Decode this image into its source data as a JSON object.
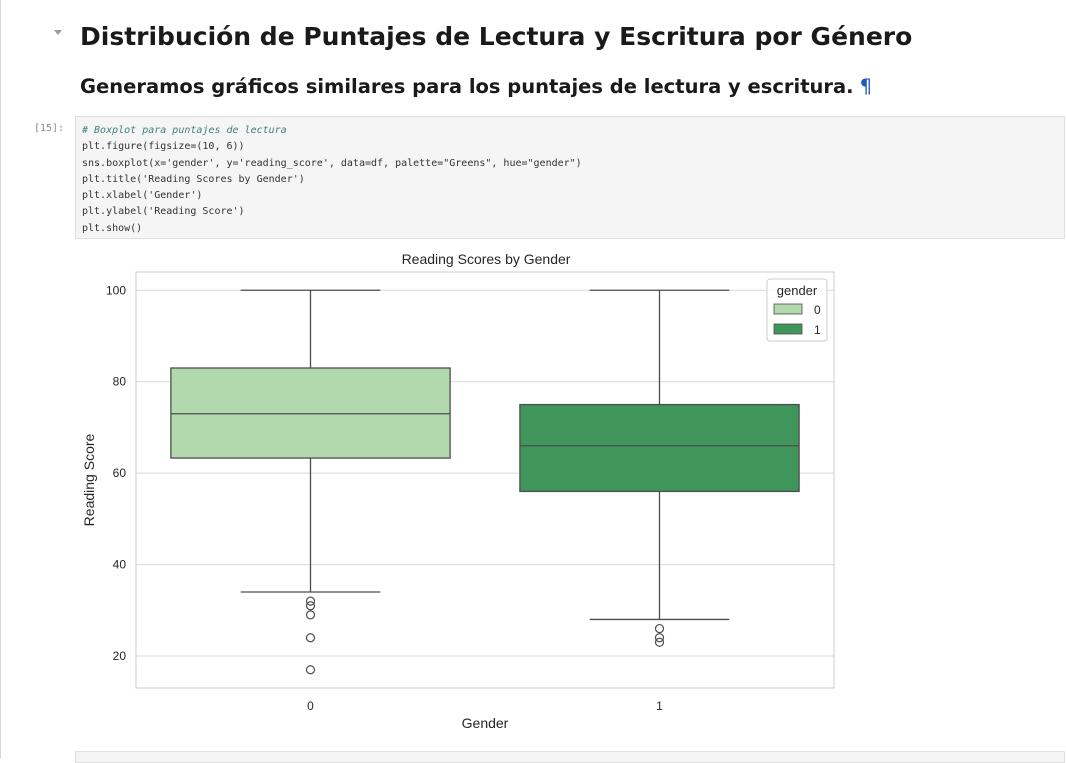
{
  "section": {
    "heading": "Distribución de Puntajes de Lectura y Escritura por Género",
    "subheading": "Generamos gráficos similares para los puntajes de lectura y escritura.",
    "anchor_symbol": "¶"
  },
  "cell": {
    "prompt": "[15]:",
    "code_lines": [
      "# Boxplot para puntajes de lectura",
      "plt.figure(figsize=(10, 6))",
      "sns.boxplot(x='gender', y='reading_score', data=df, palette=\"Greens\", hue=\"gender\")",
      "plt.title('Reading Scores by Gender')",
      "plt.xlabel('Gender')",
      "plt.ylabel('Reading Score')",
      "plt.show()"
    ]
  },
  "colors": {
    "box_0": "#b2d8ad",
    "box_1": "#40955a",
    "line": "#4d4d4d",
    "grid": "#d9d9d9"
  },
  "chart_data": {
    "type": "boxplot",
    "title": "Reading Scores by Gender",
    "xlabel": "Gender",
    "ylabel": "Reading Score",
    "categories": [
      "0",
      "1"
    ],
    "ylim": [
      13,
      104
    ],
    "yticks": [
      20,
      40,
      60,
      80,
      100
    ],
    "grid": true,
    "legend": {
      "title": "gender",
      "entries": [
        "0",
        "1"
      ],
      "placement": "top-right"
    },
    "boxes": [
      {
        "category": "0",
        "whisker_low": 34,
        "q1": 63.3,
        "median": 73,
        "q3": 83,
        "whisker_high": 100,
        "outliers": [
          32,
          31,
          29,
          24,
          17
        ]
      },
      {
        "category": "1",
        "whisker_low": 28,
        "q1": 56,
        "median": 66,
        "q3": 75,
        "whisker_high": 100,
        "outliers": [
          26,
          24,
          23
        ]
      }
    ]
  }
}
